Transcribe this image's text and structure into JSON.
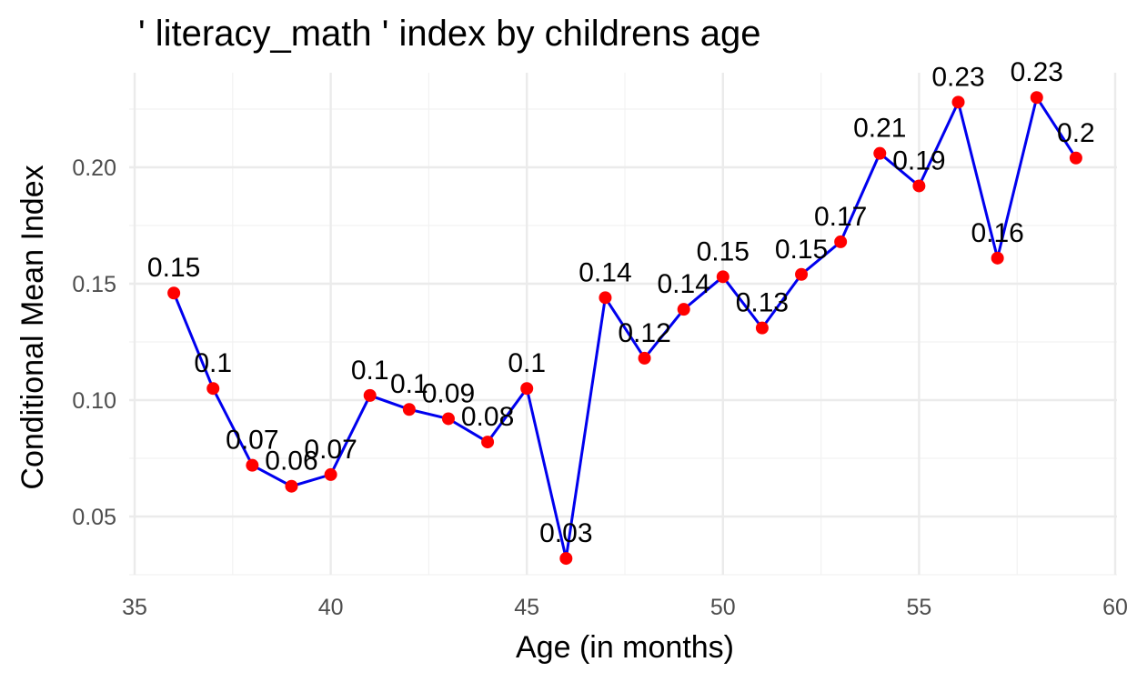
{
  "chart_data": {
    "type": "line",
    "title": "' literacy_math ' index by childrens age",
    "xlabel": "Age (in months)",
    "ylabel": "Conditional Mean Index",
    "xlim": [
      35,
      60
    ],
    "ylim": [
      0.05,
      0.2
    ],
    "x_ticks": [
      35,
      40,
      45,
      50,
      55,
      60
    ],
    "x_tick_labels": [
      "35",
      "40",
      "45",
      "50",
      "55",
      "60"
    ],
    "y_ticks": [
      0.05,
      0.1,
      0.15,
      0.2
    ],
    "y_tick_labels": [
      "0.05",
      "0.10",
      "0.15",
      "0.20"
    ],
    "grid": true,
    "series": [
      {
        "x": [
          36,
          37,
          38,
          39,
          40,
          41,
          42,
          43,
          44,
          45,
          46,
          47,
          48,
          49,
          50,
          51,
          52,
          53,
          54,
          55,
          56,
          57,
          58,
          59
        ],
        "values": [
          0.146,
          0.105,
          0.072,
          0.063,
          0.068,
          0.102,
          0.096,
          0.092,
          0.082,
          0.105,
          0.032,
          0.144,
          0.118,
          0.139,
          0.153,
          0.131,
          0.154,
          0.168,
          0.206,
          0.192,
          0.228,
          0.161,
          0.23,
          0.204
        ],
        "labels": [
          "0.15",
          "0.1",
          "0.07",
          "0.06",
          "0.07",
          "0.1",
          "0.1",
          "0.09",
          "0.08",
          "0.1",
          "0.03",
          "0.14",
          "0.12",
          "0.14",
          "0.15",
          "0.13",
          "0.15",
          "0.17",
          "0.21",
          "0.19",
          "0.23",
          "0.16",
          "0.23",
          "0.2"
        ]
      }
    ],
    "colors": {
      "line": "#0000ee",
      "point": "#ff0000",
      "text": "#000000"
    }
  }
}
